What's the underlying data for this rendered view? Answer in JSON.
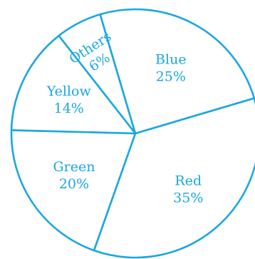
{
  "chart_data": {
    "type": "pie",
    "title": "",
    "start_angle_deg": -16.5,
    "direction": "clockwise",
    "colors": {
      "stroke": "#1aa7e0",
      "text": "#1aa7e0",
      "fill": "#ffffff"
    },
    "slices": [
      {
        "name": "Red",
        "percent_text": "35%",
        "value": 35
      },
      {
        "name": "Green",
        "percent_text": "20%",
        "value": 20
      },
      {
        "name": "Yellow",
        "percent_text": "14%",
        "value": 14
      },
      {
        "name": "Others",
        "percent_text": "6%",
        "value": 6
      },
      {
        "name": "Blue",
        "percent_text": "25%",
        "value": 25
      }
    ]
  }
}
